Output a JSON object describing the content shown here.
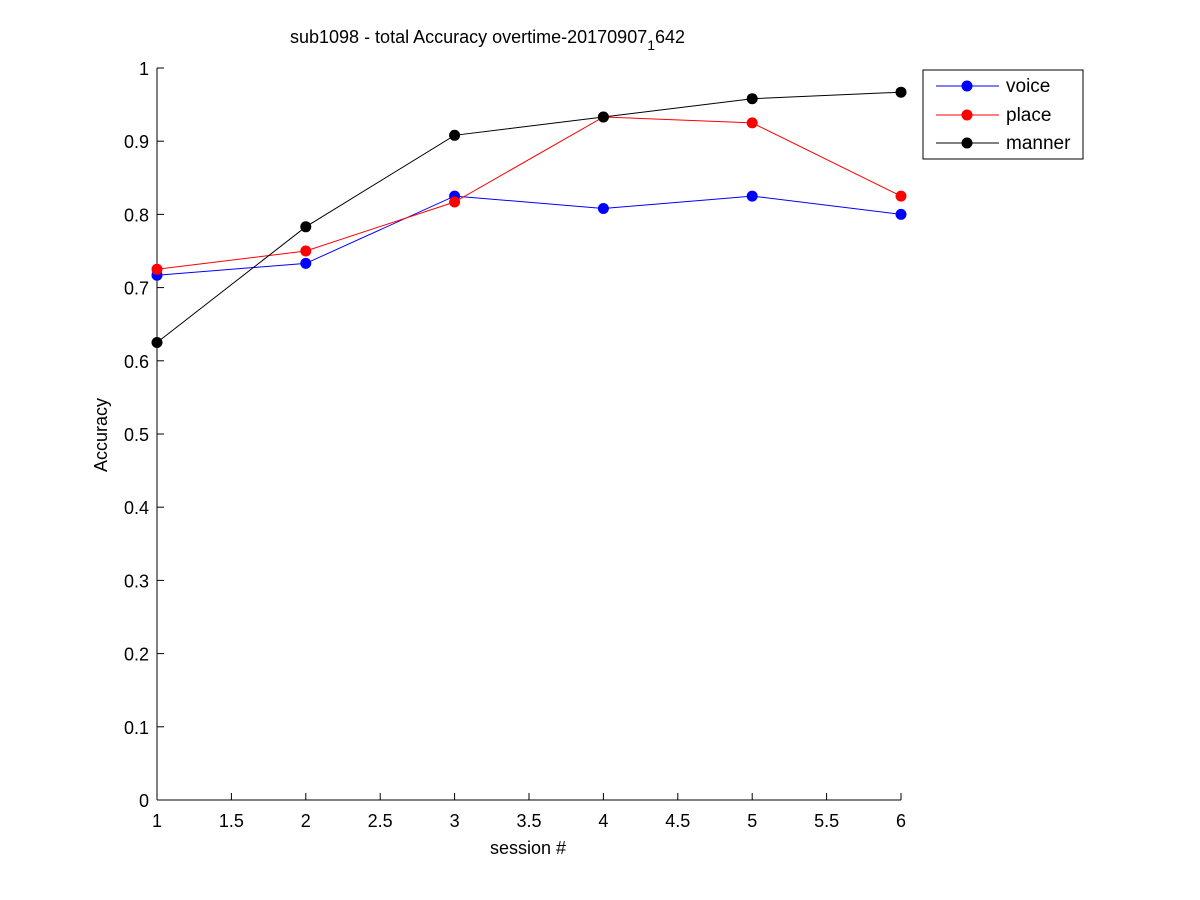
{
  "chart_data": {
    "type": "line",
    "title_main": "sub1098 - total Accuracy overtime-20170907",
    "title_sub": "1",
    "title_tail": "642",
    "xlabel": "session #",
    "ylabel": "Accuracy",
    "xlim": [
      1,
      6
    ],
    "ylim": [
      0,
      1
    ],
    "x_ticks": [
      "1",
      "1.5",
      "2",
      "2.5",
      "3",
      "3.5",
      "4",
      "4.5",
      "5",
      "5.5",
      "6"
    ],
    "y_ticks": [
      "0",
      "0.1",
      "0.2",
      "0.3",
      "0.4",
      "0.5",
      "0.6",
      "0.7",
      "0.8",
      "0.9",
      "1"
    ],
    "grid": false,
    "legend_position": "top-right outside",
    "x": [
      1,
      2,
      3,
      4,
      5,
      6
    ],
    "series": [
      {
        "name": "voice",
        "color": "#0000ff",
        "values": [
          0.717,
          0.733,
          0.825,
          0.808,
          0.825,
          0.8
        ]
      },
      {
        "name": "place",
        "color": "#ff0000",
        "values": [
          0.725,
          0.75,
          0.817,
          0.933,
          0.925,
          0.825
        ]
      },
      {
        "name": "manner",
        "color": "#000000",
        "values": [
          0.625,
          0.783,
          0.908,
          0.933,
          0.958,
          0.967
        ]
      }
    ]
  }
}
